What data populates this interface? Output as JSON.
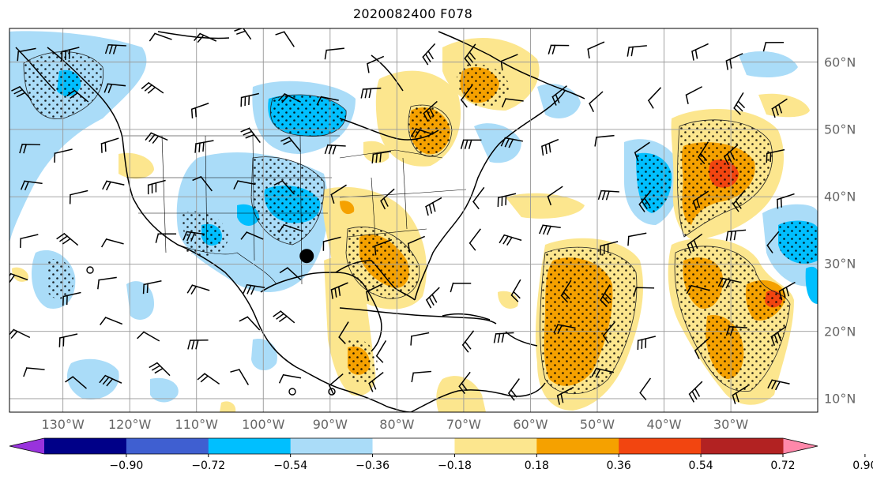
{
  "title": "2020082400 F078",
  "map": {
    "lon_min": -138,
    "lon_max": -17,
    "lat_min": 8,
    "lat_max": 65,
    "lon_ticks": [
      {
        "lon": -130,
        "label": "130°W"
      },
      {
        "lon": -120,
        "label": "120°W"
      },
      {
        "lon": -110,
        "label": "110°W"
      },
      {
        "lon": -100,
        "label": "100°W"
      },
      {
        "lon": -90,
        "label": "90°W"
      },
      {
        "lon": -80,
        "label": "80°W"
      },
      {
        "lon": -70,
        "label": "70°W"
      },
      {
        "lon": -60,
        "label": "60°W"
      },
      {
        "lon": -50,
        "label": "50°W"
      },
      {
        "lon": -40,
        "label": "40°W"
      },
      {
        "lon": -30,
        "label": "30°W"
      }
    ],
    "lat_ticks": [
      {
        "lat": 60,
        "label": "60°N"
      },
      {
        "lat": 50,
        "label": "50°N"
      },
      {
        "lat": 40,
        "label": "40°N"
      },
      {
        "lat": 30,
        "label": "30°N"
      },
      {
        "lat": 20,
        "label": "20°N"
      },
      {
        "lat": 10,
        "label": "10°N"
      }
    ],
    "grid": true,
    "marker": {
      "lon": -93.5,
      "lat": 31.2
    },
    "field_colors": {
      "neg_strong": "#00bfff",
      "neg_weak": "#aadcf8",
      "pos_weak": "#fce68e",
      "pos_mid": "#f5a100",
      "pos_strong": "#f24510"
    }
  },
  "colorbar": {
    "colors": [
      "#9933dd",
      "#000088",
      "#3f5fd1",
      "#00bfff",
      "#aadcf8",
      "#ffffff",
      "#fce68e",
      "#f5a100",
      "#f24510",
      "#b22222",
      "#ff88aa"
    ],
    "labels": [
      "−0.90",
      "−0.72",
      "−0.54",
      "−0.36",
      "−0.18",
      "0.18",
      "0.36",
      "0.54",
      "0.72",
      "0.90"
    ],
    "extend": "both"
  }
}
